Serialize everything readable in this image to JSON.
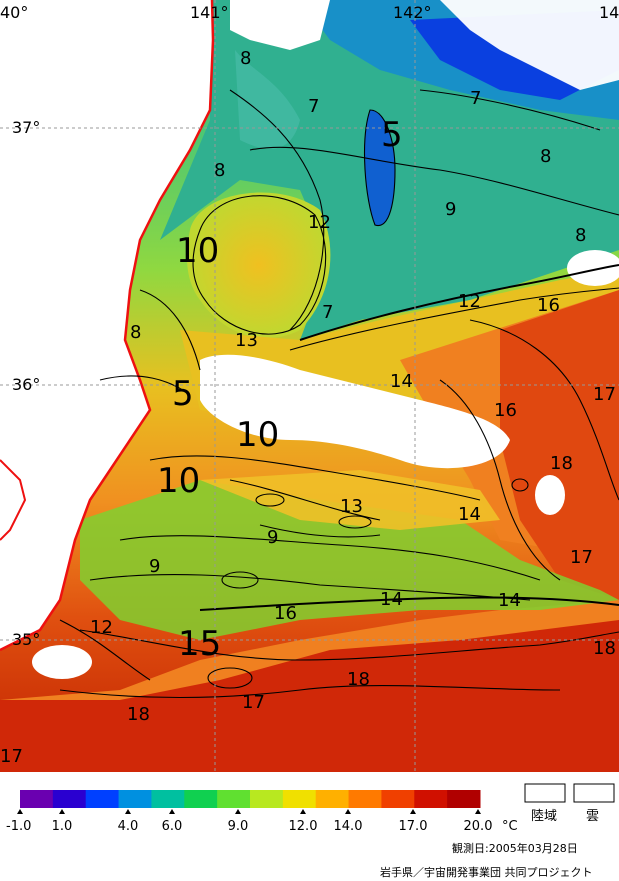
{
  "map": {
    "lon_labels": [
      "40°",
      "141°",
      "142°",
      "14"
    ],
    "lat_labels": [
      "37°",
      "36°",
      "35°"
    ],
    "contour_labels": [
      {
        "t": "8",
        "s": "sm"
      },
      {
        "t": "7",
        "s": "sm"
      },
      {
        "t": "5",
        "s": "lg"
      },
      {
        "t": "7",
        "s": "sm"
      },
      {
        "t": "8",
        "s": "sm"
      },
      {
        "t": "8",
        "s": "sm"
      },
      {
        "t": "9",
        "s": "sm"
      },
      {
        "t": "8",
        "s": "sm"
      },
      {
        "t": "12",
        "s": "sm"
      },
      {
        "t": "10",
        "s": "lg"
      },
      {
        "t": "12",
        "s": "sm"
      },
      {
        "t": "16",
        "s": "sm"
      },
      {
        "t": "8",
        "s": "sm"
      },
      {
        "t": "13",
        "s": "sm"
      },
      {
        "t": "7",
        "s": "sm"
      },
      {
        "t": "14",
        "s": "sm"
      },
      {
        "t": "17",
        "s": "sm"
      },
      {
        "t": "5",
        "s": "lg"
      },
      {
        "t": "16",
        "s": "sm"
      },
      {
        "t": "10",
        "s": "lg"
      },
      {
        "t": "18",
        "s": "sm"
      },
      {
        "t": "10",
        "s": "lg"
      },
      {
        "t": "13",
        "s": "sm"
      },
      {
        "t": "14",
        "s": "sm"
      },
      {
        "t": "9",
        "s": "sm"
      },
      {
        "t": "17",
        "s": "sm"
      },
      {
        "t": "9",
        "s": "sm"
      },
      {
        "t": "16",
        "s": "sm"
      },
      {
        "t": "14",
        "s": "sm"
      },
      {
        "t": "14",
        "s": "sm"
      },
      {
        "t": "12",
        "s": "sm"
      },
      {
        "t": "15",
        "s": "lg"
      },
      {
        "t": "18",
        "s": "sm"
      },
      {
        "t": "18",
        "s": "sm"
      },
      {
        "t": "17",
        "s": "sm"
      },
      {
        "t": "18",
        "s": "sm"
      },
      {
        "t": "17",
        "s": "sm"
      }
    ]
  },
  "legend": {
    "ticks": [
      "-1.0",
      "1.0",
      "4.0",
      "6.0",
      "9.0",
      "12.0",
      "14.0",
      "17.0",
      "20.0"
    ],
    "unit": "°C",
    "colors": [
      "#6a00b0",
      "#2a00d0",
      "#0040ff",
      "#0090e0",
      "#00c0a0",
      "#10d050",
      "#60e030",
      "#b8e820",
      "#f0e000",
      "#ffb000",
      "#ff7a00",
      "#f04000",
      "#d01000",
      "#b00000"
    ],
    "land_label": "陸域",
    "cloud_label": "雲"
  },
  "footer": {
    "observation_date": "観測日:2005年03月28日",
    "credits": "岩手県／宇宙開発事業団 共同プロジェクト"
  }
}
